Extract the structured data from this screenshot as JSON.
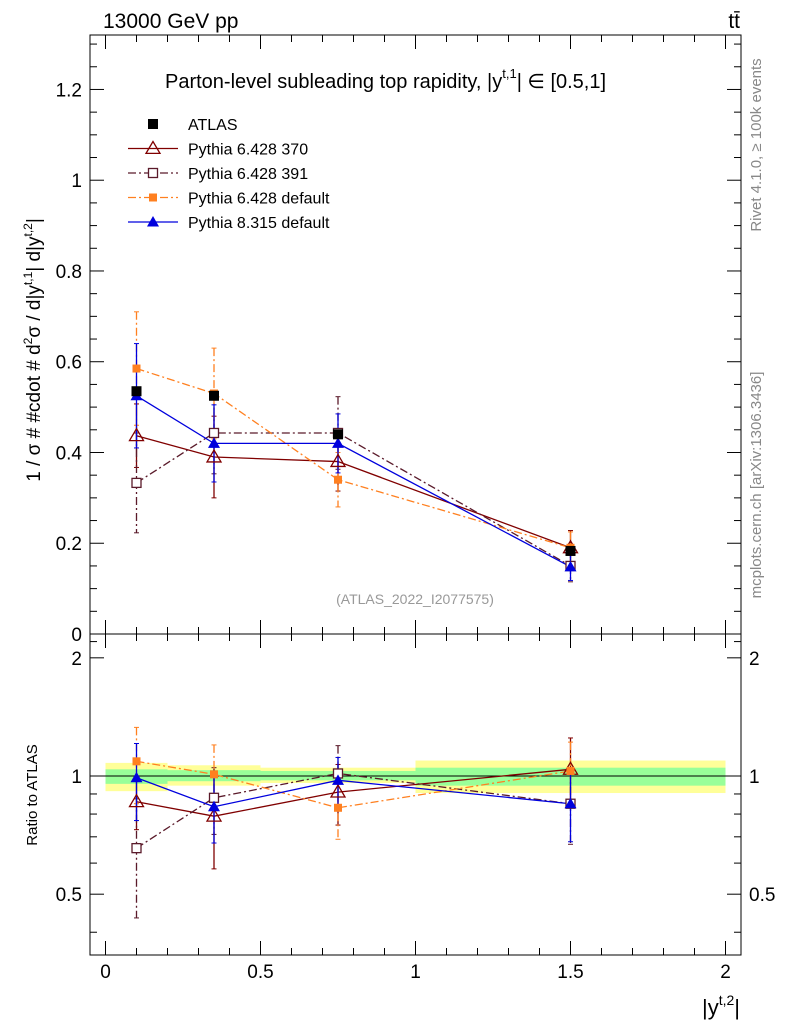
{
  "header": {
    "energy_label": "13000 GeV pp",
    "process_label": "tt̄"
  },
  "side_labels": {
    "rivet": "Rivet 4.1.0, ≥ 100k events",
    "source": "mcplots.cern.ch [arXiv:1306.3436]"
  },
  "chart_data": [
    {
      "type": "line",
      "panel": "main",
      "title": "Parton-level subleading top rapidity, |y^{t,1}| ∈ [0.5,1]",
      "title_text": "Parton-level subleading top rapidity, |y",
      "title_superscript": "t,1",
      "title_suffix": "| ∈ [0.5,1]",
      "ylabel": "1 / σ # #cdot # d²σ / d|y^{t,1}| d|y^{t,2}|",
      "ylabel_text": "1 / σ # #cdot # d",
      "ylabel_sup1": "2",
      "ylabel_mid1": "σ / d|y",
      "ylabel_sup2": "t,1",
      "ylabel_mid2": "| d|y",
      "ylabel_sup3": "t,2",
      "ylabel_end": "|",
      "watermark": "(ATLAS_2022_I2077575)",
      "xlim": [
        -0.05,
        2.05
      ],
      "ylim": [
        0,
        1.32
      ],
      "yticks": [
        0,
        0.2,
        0.4,
        0.6,
        0.8,
        1,
        1.2
      ],
      "ytick_labels": [
        "0",
        "0.2",
        "0.4",
        "0.6",
        "0.8",
        "1",
        "1.2"
      ],
      "legend_position": "top-left",
      "series": [
        {
          "name": "ATLAS",
          "color": "#000000",
          "marker": "square-filled",
          "line": "none",
          "x": [
            0.1,
            0.35,
            0.75,
            1.5
          ],
          "y": [
            0.535,
            0.525,
            0.44,
            0.183
          ],
          "yerr": [
            0.008,
            0.008,
            0.008,
            0.006
          ]
        },
        {
          "name": "Pythia 6.428 370",
          "color": "#800000",
          "marker": "triangle-open",
          "line": "solid",
          "x": [
            0.1,
            0.35,
            0.75,
            1.5
          ],
          "y": [
            0.437,
            0.39,
            0.38,
            0.19
          ],
          "yerr": [
            0.07,
            0.09,
            0.065,
            0.038
          ]
        },
        {
          "name": "Pythia 6.428 391",
          "color": "#5a1a2a",
          "marker": "square-open",
          "line": "dashdot",
          "x": [
            0.1,
            0.35,
            0.75,
            1.5
          ],
          "y": [
            0.333,
            0.443,
            0.443,
            0.15
          ],
          "yerr": [
            0.11,
            0.09,
            0.08,
            0.035
          ]
        },
        {
          "name": "Pythia 6.428 default",
          "color": "#ff8020",
          "marker": "square-filled-small",
          "line": "dashdot",
          "x": [
            0.1,
            0.35,
            0.75,
            1.5
          ],
          "y": [
            0.585,
            0.53,
            0.34,
            0.19
          ],
          "yerr": [
            0.125,
            0.1,
            0.06,
            0.035
          ]
        },
        {
          "name": "Pythia 8.315 default",
          "color": "#0000dd",
          "marker": "triangle-filled",
          "line": "solid",
          "x": [
            0.1,
            0.35,
            0.75,
            1.5
          ],
          "y": [
            0.525,
            0.42,
            0.42,
            0.148
          ],
          "yerr": [
            0.115,
            0.085,
            0.065,
            0.03
          ]
        }
      ]
    },
    {
      "type": "line",
      "panel": "ratio",
      "ylabel": "Ratio to ATLAS",
      "xlabel": "|y^{t,2}|",
      "xlabel_text": "|y",
      "xlabel_sup": "t,2",
      "xlabel_end": "|",
      "xlim": [
        -0.05,
        2.05
      ],
      "ylim": [
        0.35,
        2.3
      ],
      "xticks": [
        0,
        0.5,
        1,
        1.5,
        2
      ],
      "xtick_labels": [
        "0",
        "0.5",
        "1",
        "1.5",
        "2"
      ],
      "yticks": [
        0.5,
        1,
        2
      ],
      "ytick_labels": [
        "0.5",
        "1",
        "2"
      ],
      "reference_line": 1,
      "bands": [
        {
          "x0": 0,
          "x1": 0.2,
          "yellow": [
            0.915,
            1.08
          ],
          "green": [
            0.955,
            1.04
          ]
        },
        {
          "x0": 0.2,
          "x1": 0.5,
          "yellow": [
            0.945,
            1.065
          ],
          "green": [
            0.97,
            1.035
          ]
        },
        {
          "x0": 0.5,
          "x1": 1.0,
          "yellow": [
            0.96,
            1.05
          ],
          "green": [
            0.975,
            1.03
          ]
        },
        {
          "x0": 1.0,
          "x1": 2.0,
          "yellow": [
            0.905,
            1.095
          ],
          "green": [
            0.945,
            1.05
          ]
        }
      ],
      "series": [
        {
          "name": "Pythia 6.428 370",
          "color": "#800000",
          "marker": "triangle-open",
          "line": "solid",
          "x": [
            0.1,
            0.35,
            0.75,
            1.5
          ],
          "y": [
            0.86,
            0.79,
            0.91,
            1.04
          ],
          "yerr": [
            0.13,
            0.21,
            0.16,
            0.21
          ]
        },
        {
          "name": "Pythia 6.428 391",
          "color": "#5a1a2a",
          "marker": "square-open",
          "line": "dashdot",
          "x": [
            0.1,
            0.35,
            0.75,
            1.5
          ],
          "y": [
            0.655,
            0.88,
            1.015,
            0.85
          ],
          "yerr": [
            0.22,
            0.17,
            0.18,
            0.18
          ]
        },
        {
          "name": "Pythia 6.428 default",
          "color": "#ff8020",
          "marker": "square-filled-small",
          "line": "dashdot",
          "x": [
            0.1,
            0.35,
            0.75,
            1.5
          ],
          "y": [
            1.09,
            1.01,
            0.83,
            1.03
          ],
          "yerr": [
            0.24,
            0.19,
            0.14,
            0.19
          ]
        },
        {
          "name": "Pythia 8.315 default",
          "color": "#0000dd",
          "marker": "triangle-filled",
          "line": "solid",
          "x": [
            0.1,
            0.35,
            0.75,
            1.5
          ],
          "y": [
            0.99,
            0.835,
            0.975,
            0.85
          ],
          "yerr": [
            0.22,
            0.16,
            0.14,
            0.17
          ]
        }
      ]
    }
  ]
}
